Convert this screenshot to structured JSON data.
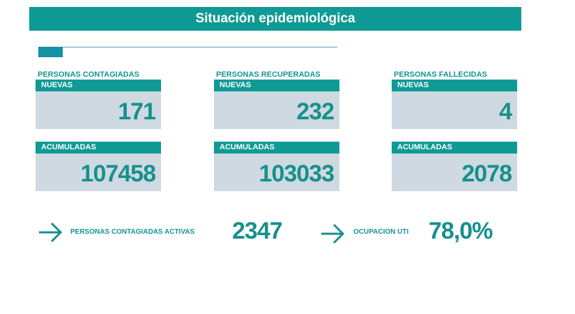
{
  "title": "Situación epidemiológica",
  "columns": [
    {
      "category": "PERSONAS CONTAGIADAS",
      "new_label": "NUEVAS",
      "new_value": "171",
      "acc_label": "ACUMULADAS",
      "acc_value": "107458"
    },
    {
      "category": "PERSONAS RECUPERADAS",
      "new_label": "NUEVAS",
      "new_value": "232",
      "acc_label": "ACUMULADAS",
      "acc_value": "103033"
    },
    {
      "category": "PERSONAS FALLECIDAS",
      "new_label": "NUEVAS",
      "new_value": "4",
      "acc_label": "ACUMULADAS",
      "acc_value": "2078"
    }
  ],
  "bottom": [
    {
      "icon": "arrow-right-icon",
      "label": "PERSONAS CONTAGIADAS ACTIVAS",
      "value": "2347"
    },
    {
      "icon": "arrow-right-icon",
      "label": "OCUPACION UTI",
      "value": "78,0%"
    }
  ],
  "colors": {
    "accent": "#0f9a95",
    "box": "#cfd9e1",
    "number": "#17908c"
  }
}
